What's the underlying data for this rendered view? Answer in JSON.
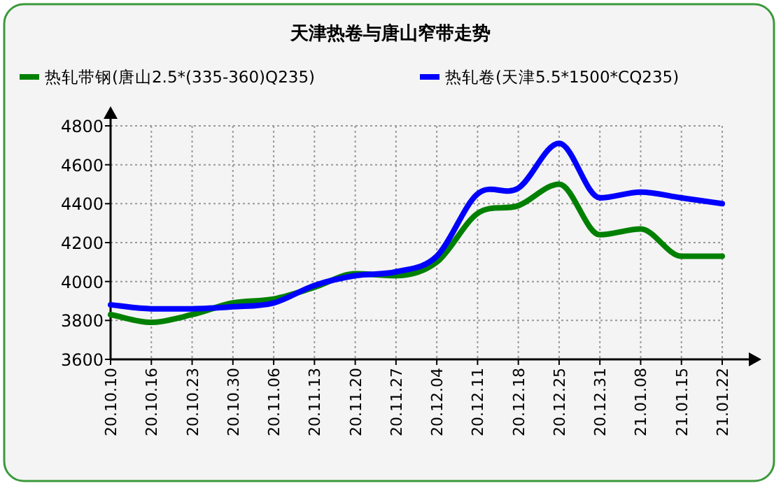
{
  "chart_data": {
    "type": "line",
    "title": "天津热卷与唐山窄带走势",
    "categories": [
      "20.10.10",
      "20.10.16",
      "20.10.23",
      "20.10.30",
      "20.11.06",
      "20.11.13",
      "20.11.20",
      "20.11.27",
      "20.12.04",
      "20.12.11",
      "20.12.18",
      "20.12.25",
      "20.12.31",
      "21.01.08",
      "21.01.15",
      "21.01.22"
    ],
    "series": [
      {
        "name": "热轧带钢(唐山2.5*(335-360)Q235)",
        "color": "#008000",
        "values": [
          3830,
          3790,
          3830,
          3890,
          3910,
          3970,
          4040,
          4030,
          4100,
          4350,
          4390,
          4500,
          4240,
          4270,
          4130,
          4130
        ]
      },
      {
        "name": "热轧卷(天津5.5*1500*CQ235)",
        "color": "#0000ff",
        "values": [
          3880,
          3860,
          3860,
          3870,
          3890,
          3980,
          4030,
          4050,
          4130,
          4450,
          4480,
          4710,
          4430,
          4460,
          4430,
          4400
        ]
      }
    ],
    "ylim": [
      3600,
      4800
    ],
    "yticks": [
      3600,
      3800,
      4000,
      4200,
      4400,
      4600,
      4800
    ],
    "grid": true,
    "legend": "top",
    "marker": "none",
    "line_style": "solid"
  }
}
